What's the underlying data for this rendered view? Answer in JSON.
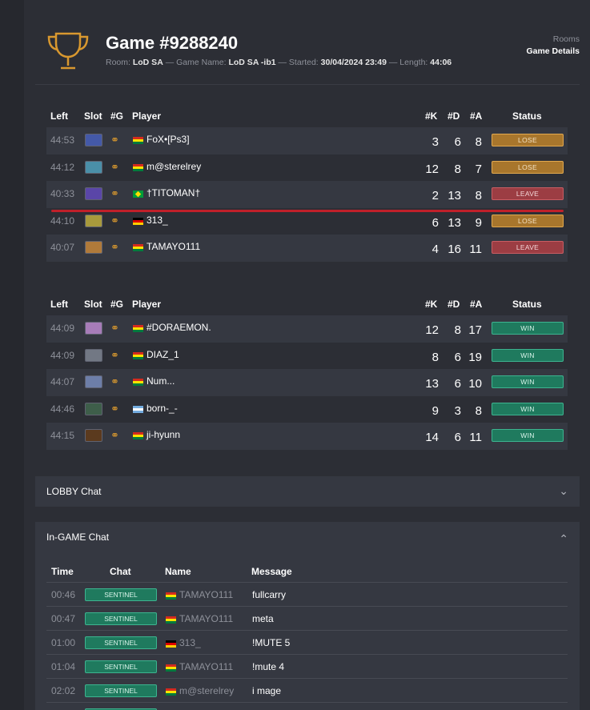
{
  "header": {
    "title": "Game #9288240",
    "room_label": "Room:",
    "room": "LoD SA",
    "game_name_label": "— Game Name:",
    "game_name": "LoD SA -ib1",
    "started_label": "— Started:",
    "started": "30/04/2024 23:49",
    "length_label": "— Length:",
    "length": "44:06",
    "breadcrumb_parent": "Rooms",
    "breadcrumb_current": "Game Details",
    "trophy_color": "#d8982f"
  },
  "columns": {
    "left": "Left",
    "slot": "Slot",
    "g": "#G",
    "player": "Player",
    "k": "#K",
    "d": "#D",
    "a": "#A",
    "status": "Status"
  },
  "teams": [
    {
      "players": [
        {
          "left": "44:53",
          "slot_color": "#4459a8",
          "flag": "bo",
          "name": "FoX•[Ps3]",
          "k": "3",
          "d": "6",
          "a": "8",
          "status": "LOSE"
        },
        {
          "left": "44:12",
          "slot_color": "#4a8fa8",
          "flag": "bo",
          "name": "m@sterelrey",
          "k": "12",
          "d": "8",
          "a": "7",
          "status": "LOSE"
        },
        {
          "left": "40:33",
          "slot_color": "#5a46a8",
          "flag": "br",
          "name": "†TITOMAN†",
          "k": "2",
          "d": "13",
          "a": "8",
          "status": "LEAVE"
        },
        {
          "left": "44:10",
          "slot_color": "#a89a3c",
          "flag": "de",
          "name": "313_",
          "k": "6",
          "d": "13",
          "a": "9",
          "status": "LOSE"
        },
        {
          "left": "40:07",
          "slot_color": "#b07a3a",
          "flag": "bo",
          "name": "TAMAYO111",
          "k": "4",
          "d": "16",
          "a": "11",
          "status": "LEAVE"
        }
      ]
    },
    {
      "players": [
        {
          "left": "44:09",
          "slot_color": "#a77cb8",
          "flag": "bo",
          "name": "#DORAEMON.",
          "k": "12",
          "d": "8",
          "a": "17",
          "status": "WIN"
        },
        {
          "left": "44:09",
          "slot_color": "#727884",
          "flag": "bo",
          "name": "DIAZ_1",
          "k": "8",
          "d": "6",
          "a": "19",
          "status": "WIN"
        },
        {
          "left": "44:07",
          "slot_color": "#6d7ea8",
          "flag": "bo",
          "name": "Num...",
          "k": "13",
          "d": "6",
          "a": "10",
          "status": "WIN"
        },
        {
          "left": "44:46",
          "slot_color": "#3e5e4a",
          "flag": "ar",
          "name": "born-_-",
          "k": "9",
          "d": "3",
          "a": "8",
          "status": "WIN"
        },
        {
          "left": "44:15",
          "slot_color": "#5b3a1e",
          "flag": "bo",
          "name": "ji-hyunn",
          "k": "14",
          "d": "6",
          "a": "11",
          "status": "WIN"
        }
      ]
    }
  ],
  "lobby_chat": {
    "title": "LOBBY Chat",
    "icon": "chevron-down-icon"
  },
  "ingame_chat": {
    "title": "In-GAME Chat",
    "icon": "chevron-up-icon",
    "columns": {
      "time": "Time",
      "chat": "Chat",
      "name": "Name",
      "message": "Message"
    },
    "rows": [
      {
        "time": "00:46",
        "chat": "SENTINEL",
        "flag": "bo",
        "name": "TAMAYO111",
        "message": "fullcarry"
      },
      {
        "time": "00:47",
        "chat": "SENTINEL",
        "flag": "bo",
        "name": "TAMAYO111",
        "message": "meta"
      },
      {
        "time": "01:00",
        "chat": "SENTINEL",
        "flag": "de",
        "name": "313_",
        "message": "!MUTE 5"
      },
      {
        "time": "01:04",
        "chat": "SENTINEL",
        "flag": "bo",
        "name": "TAMAYO111",
        "message": "!mute 4"
      },
      {
        "time": "02:02",
        "chat": "SENTINEL",
        "flag": "bo",
        "name": "m@sterelrey",
        "message": "i mage"
      }
    ]
  }
}
